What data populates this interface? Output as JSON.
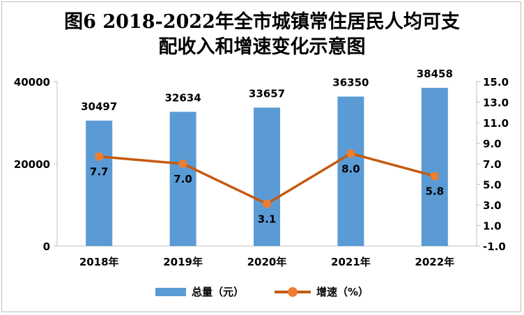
{
  "title_line1": "图6 2018-2022年全市城镇常住居民人均可支",
  "title_line2": "配收入和增速变化示意图",
  "colors": {
    "bar": "#5b9bd5",
    "line": "#c55a11",
    "marker": "#ed7d31"
  },
  "chart_data": {
    "type": "bar",
    "categories": [
      "2018年",
      "2019年",
      "2020年",
      "2021年",
      "2022年"
    ],
    "series": [
      {
        "name": "总量（元）",
        "type": "bar",
        "axis": "left",
        "values": [
          30497,
          32634,
          33657,
          36350,
          38458
        ]
      },
      {
        "name": "增速（%）",
        "type": "line",
        "axis": "right",
        "values": [
          7.7,
          7.0,
          3.1,
          8.0,
          5.8
        ]
      }
    ],
    "bar_labels": [
      "30497",
      "32634",
      "33657",
      "36350",
      "38458"
    ],
    "line_labels": [
      "7.7",
      "7.0",
      "3.1",
      "8.0",
      "5.8"
    ],
    "y_left": {
      "ticks": [
        "0",
        "20000",
        "40000"
      ],
      "lim": [
        0,
        40000
      ]
    },
    "y_right": {
      "ticks": [
        "-1.0",
        "1.0",
        "3.0",
        "5.0",
        "7.0",
        "9.0",
        "11.0",
        "13.0",
        "15.0"
      ],
      "lim": [
        -1,
        15
      ]
    },
    "legend": "bottom",
    "grid": false
  }
}
